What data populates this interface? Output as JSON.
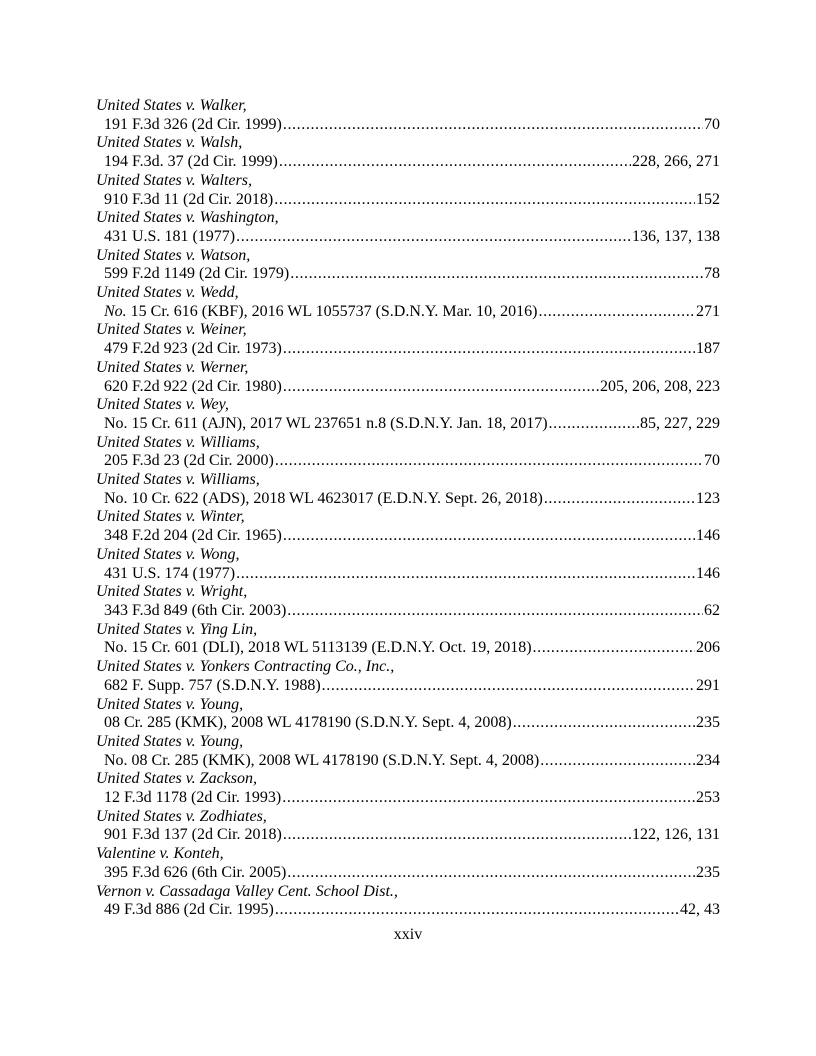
{
  "page": {
    "footer_page_number": "xxiv"
  },
  "entries": [
    {
      "case": "United States v. Walker,",
      "citation": "191 F.3d 326 (2d Cir. 1999)",
      "pages": "70"
    },
    {
      "case": "United States v. Walsh,",
      "citation": "194 F.3d. 37 (2d Cir. 1999)",
      "pages": "228, 266, 271"
    },
    {
      "case": "United States v. Walters,",
      "citation": "910 F.3d 11 (2d Cir. 2018)",
      "pages": "152"
    },
    {
      "case": "United States v. Washington,",
      "citation": "431 U.S. 181 (1977)",
      "pages": "136, 137, 138"
    },
    {
      "case": "United States v. Watson,",
      "citation": "599 F.2d 1149 (2d Cir. 1979)",
      "pages": "78"
    },
    {
      "case": "United States v. Wedd,",
      "citation_italic": "No.",
      "citation": " 15 Cr. 616 (KBF), 2016 WL 1055737 (S.D.N.Y. Mar. 10, 2016)",
      "pages": "271"
    },
    {
      "case": "United States v. Weiner,",
      "citation": "479 F.2d 923 (2d Cir. 1973)",
      "pages": "187"
    },
    {
      "case": "United States v. Werner,",
      "citation": "620 F.2d 922 (2d Cir. 1980)",
      "pages": "205, 206, 208, 223"
    },
    {
      "case": "United States v. Wey,",
      "citation": "No. 15 Cr. 611 (AJN), 2017 WL 237651 n.8 (S.D.N.Y. Jan. 18, 2017)",
      "pages": "85, 227, 229"
    },
    {
      "case": "United States v. Williams,",
      "citation": "205 F.3d 23 (2d Cir. 2000)",
      "pages": "70"
    },
    {
      "case": "United States v. Williams,",
      "citation": "No. 10 Cr. 622 (ADS), 2018 WL 4623017 (E.D.N.Y. Sept. 26, 2018)",
      "pages": "123"
    },
    {
      "case": "United States v. Winter,",
      "citation": "348 F.2d 204 (2d Cir. 1965)",
      "pages": "146"
    },
    {
      "case": "United States v. Wong,",
      "citation": "431 U.S. 174 (1977)",
      "pages": "146"
    },
    {
      "case": "United States v. Wright,",
      "citation": "343 F.3d 849 (6th Cir. 2003)",
      "pages": "62"
    },
    {
      "case": "United States v. Ying Lin,",
      "citation": "No. 15 Cr. 601 (DLI), 2018 WL 5113139 (E.D.N.Y. Oct. 19, 2018)",
      "pages": "206"
    },
    {
      "case": "United States v. Yonkers Contracting Co., Inc.,",
      "citation": "682 F. Supp. 757 (S.D.N.Y. 1988)",
      "pages": "291"
    },
    {
      "case": "United States v. Young,",
      "citation": "08 Cr. 285 (KMK), 2008 WL 4178190 (S.D.N.Y. Sept. 4, 2008)",
      "pages": "235"
    },
    {
      "case": "United States v. Young,",
      "citation": "No. 08 Cr. 285 (KMK), 2008 WL 4178190 (S.D.N.Y. Sept. 4, 2008)",
      "pages": "234"
    },
    {
      "case": "United States v. Zackson,",
      "citation": "12 F.3d 1178 (2d Cir. 1993)",
      "pages": "253"
    },
    {
      "case": "United States v. Zodhiates,",
      "citation": "901 F.3d 137 (2d Cir. 2018)",
      "pages": "122, 126, 131"
    },
    {
      "case": "Valentine v. Konteh,",
      "citation": "395 F.3d 626 (6th Cir. 2005)",
      "pages": "235"
    },
    {
      "case": "Vernon v. Cassadaga Valley Cent. School Dist.,",
      "citation": "49 F.3d 886 (2d Cir. 1995)",
      "pages": "42, 43"
    }
  ]
}
